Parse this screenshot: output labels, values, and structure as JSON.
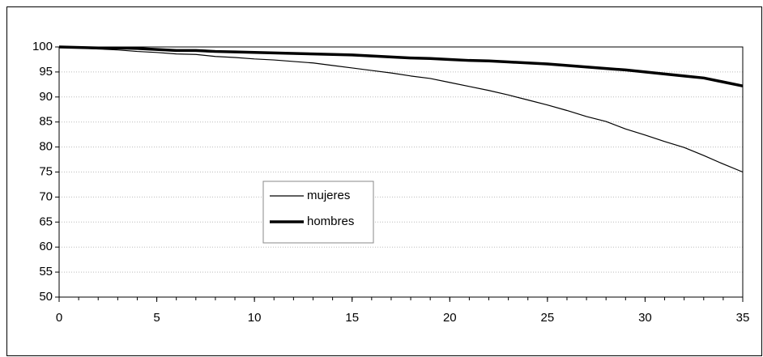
{
  "chart_data": {
    "type": "line",
    "x": [
      0,
      1,
      2,
      3,
      4,
      5,
      6,
      7,
      8,
      9,
      10,
      11,
      12,
      13,
      14,
      15,
      16,
      17,
      18,
      19,
      20,
      21,
      22,
      23,
      24,
      25,
      26,
      27,
      28,
      29,
      30,
      31,
      32,
      33,
      34,
      35
    ],
    "series": [
      {
        "name": "mujeres",
        "color": "#000000",
        "width": 1.2,
        "values": [
          100,
          99.8,
          99.6,
          99.4,
          99.1,
          98.9,
          98.6,
          98.5,
          98.1,
          97.9,
          97.6,
          97.4,
          97.1,
          96.8,
          96.3,
          95.8,
          95.3,
          94.8,
          94.2,
          93.7,
          92.9,
          92.1,
          91.3,
          90.4,
          89.4,
          88.4,
          87.3,
          86.1,
          85.1,
          83.6,
          82.4,
          81.1,
          79.9,
          78.3,
          76.6,
          75.0
        ]
      },
      {
        "name": "hombres",
        "color": "#000000",
        "width": 3.5,
        "values": [
          100,
          99.9,
          99.8,
          99.8,
          99.7,
          99.5,
          99.3,
          99.3,
          99.1,
          99.0,
          98.9,
          98.8,
          98.7,
          98.6,
          98.5,
          98.4,
          98.2,
          98.0,
          97.8,
          97.7,
          97.5,
          97.3,
          97.2,
          97.0,
          96.8,
          96.6,
          96.3,
          96.0,
          95.7,
          95.4,
          95.0,
          94.6,
          94.2,
          93.8,
          93.0,
          92.2
        ]
      }
    ],
    "xlim": [
      0,
      35
    ],
    "xticks": [
      0,
      5,
      10,
      15,
      20,
      25,
      30,
      35
    ],
    "ylim": [
      50,
      100
    ],
    "yticks": [
      50,
      55,
      60,
      65,
      70,
      75,
      80,
      85,
      90,
      95,
      100
    ],
    "grid": true
  }
}
